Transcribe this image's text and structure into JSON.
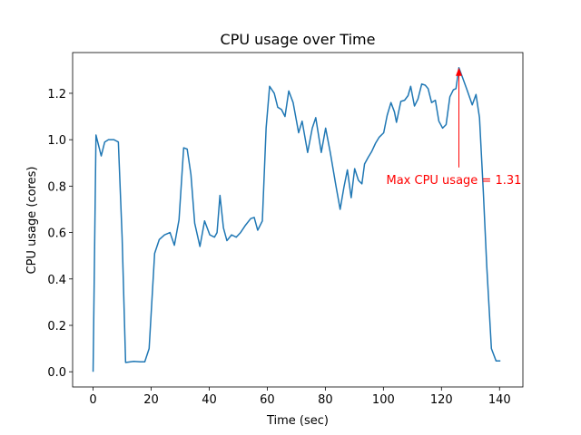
{
  "chart_data": {
    "type": "line",
    "title": "CPU usage over Time",
    "x_label": "Time (sec)",
    "y_label": "CPU usage (cores)",
    "x": [
      0,
      1,
      2.8,
      4,
      5.3,
      7.2,
      8.7,
      10,
      11.2,
      14,
      16.2,
      17.8,
      19.3,
      21.2,
      22.8,
      24.6,
      26.5,
      28,
      29.6,
      31.2,
      32.4,
      33.7,
      35,
      36.8,
      38.4,
      40.2,
      41.8,
      42.7,
      43.7,
      44.9,
      46.1,
      47.7,
      49.3,
      50.8,
      52.4,
      54.3,
      55.5,
      56.7,
      58.3,
      59.6,
      60.8,
      62.4,
      63.6,
      64.9,
      66.1,
      67.4,
      68.9,
      70.8,
      72,
      73.9,
      75.5,
      76.7,
      78.6,
      80.1,
      81.7,
      83.6,
      85.1,
      86.4,
      87.6,
      88.9,
      90.1,
      91.4,
      92.6,
      93.5,
      94.8,
      96,
      97.3,
      98.5,
      100.1,
      101.3,
      102.6,
      103.8,
      104.5,
      106,
      107.3,
      108.5,
      109.4,
      110.7,
      111.9,
      113.2,
      114.4,
      115.4,
      116.6,
      117.9,
      119.1,
      120.4,
      121.6,
      122.9,
      124.1,
      125,
      126,
      127.2,
      128.8,
      130.6,
      131.9,
      133.1,
      134.4,
      135.6,
      137.2,
      138.8,
      140.3
    ],
    "series": [
      {
        "name": "CPU usage",
        "color": "#1f77b4",
        "values": [
          0,
          1.02,
          0.93,
          0.99,
          1.0,
          1.0,
          0.99,
          0.58,
          0.04,
          0.045,
          0.043,
          0.043,
          0.1,
          0.51,
          0.57,
          0.59,
          0.6,
          0.545,
          0.655,
          0.965,
          0.96,
          0.85,
          0.64,
          0.54,
          0.65,
          0.59,
          0.58,
          0.6,
          0.76,
          0.62,
          0.565,
          0.59,
          0.58,
          0.6,
          0.63,
          0.66,
          0.665,
          0.61,
          0.65,
          1.05,
          1.23,
          1.2,
          1.14,
          1.13,
          1.1,
          1.21,
          1.16,
          1.03,
          1.08,
          0.945,
          1.05,
          1.095,
          0.945,
          1.05,
          0.945,
          0.805,
          0.7,
          0.795,
          0.87,
          0.75,
          0.875,
          0.825,
          0.81,
          0.895,
          0.925,
          0.95,
          0.985,
          1.01,
          1.03,
          1.105,
          1.16,
          1.12,
          1.075,
          1.165,
          1.17,
          1.19,
          1.23,
          1.145,
          1.175,
          1.24,
          1.235,
          1.22,
          1.16,
          1.17,
          1.08,
          1.05,
          1.065,
          1.185,
          1.215,
          1.22,
          1.31,
          1.27,
          1.215,
          1.15,
          1.195,
          1.095,
          0.78,
          0.455,
          0.1,
          0.047,
          0.047
        ]
      }
    ],
    "xlim": [
      -7.05,
      148.05
    ],
    "ylim": [
      -0.0655,
      1.3755
    ],
    "xticks": [
      0,
      20,
      40,
      60,
      80,
      100,
      120,
      140
    ],
    "yticks": [
      {
        "value": 0,
        "label": "0.0"
      },
      0.2,
      0.4,
      0.6,
      0.8,
      {
        "value": 1,
        "label": "1.0"
      },
      1.2
    ],
    "annotation": {
      "text": "Max CPU usage = 1.31",
      "color": "#ff0000"
    }
  }
}
